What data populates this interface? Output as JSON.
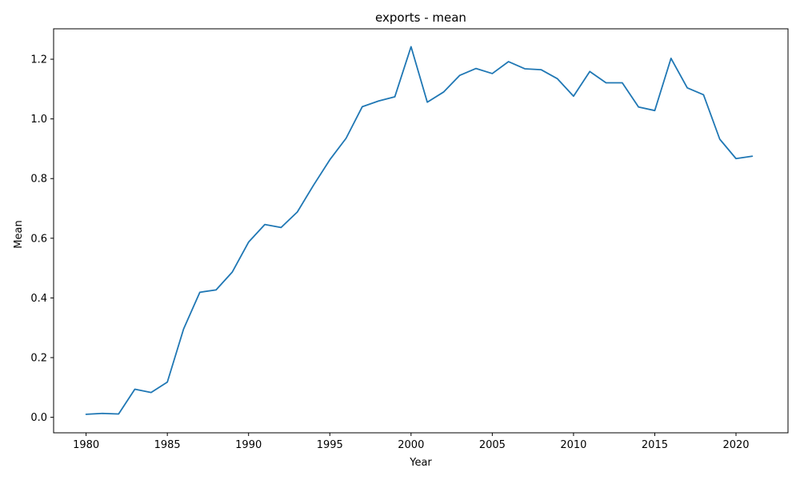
{
  "chart_data": {
    "type": "line",
    "title": "exports - mean",
    "xlabel": "Year",
    "ylabel": "Mean",
    "xlim": [
      1978,
      2023.2
    ],
    "ylim": [
      -0.052,
      1.302
    ],
    "xticks": [
      1980,
      1985,
      1990,
      1995,
      2000,
      2005,
      2010,
      2015,
      2020
    ],
    "xtick_labels": [
      "1980",
      "1985",
      "1990",
      "1995",
      "2000",
      "2005",
      "2010",
      "2015",
      "2020"
    ],
    "yticks": [
      0.0,
      0.2,
      0.4,
      0.6,
      0.8,
      1.0,
      1.2
    ],
    "ytick_labels": [
      "0.0",
      "0.2",
      "0.4",
      "0.6",
      "0.8",
      "1.0",
      "1.2"
    ],
    "grid": false,
    "legend": false,
    "line_color": "#1f77b4",
    "series": [
      {
        "x": [
          1980,
          1981,
          1982,
          1983,
          1984,
          1985,
          1986,
          1987,
          1988,
          1989,
          1990,
          1991,
          1992,
          1993,
          1994,
          1995,
          1996,
          1997,
          1998,
          1999,
          2000,
          2001,
          2002,
          2003,
          2004,
          2005,
          2006,
          2007,
          2008,
          2009,
          2010,
          2011,
          2012,
          2013,
          2014,
          2015,
          2016,
          2017,
          2018,
          2019,
          2020,
          2021
        ],
        "values": [
          0.01,
          0.013,
          0.011,
          0.094,
          0.083,
          0.118,
          0.296,
          0.419,
          0.427,
          0.487,
          0.587,
          0.646,
          0.636,
          0.688,
          0.778,
          0.863,
          0.935,
          1.041,
          1.06,
          1.074,
          1.242,
          1.056,
          1.09,
          1.146,
          1.169,
          1.152,
          1.192,
          1.168,
          1.165,
          1.135,
          1.076,
          1.159,
          1.121,
          1.121,
          1.04,
          1.028,
          1.203,
          1.104,
          1.081,
          0.932,
          0.867,
          0.875
        ]
      }
    ]
  }
}
